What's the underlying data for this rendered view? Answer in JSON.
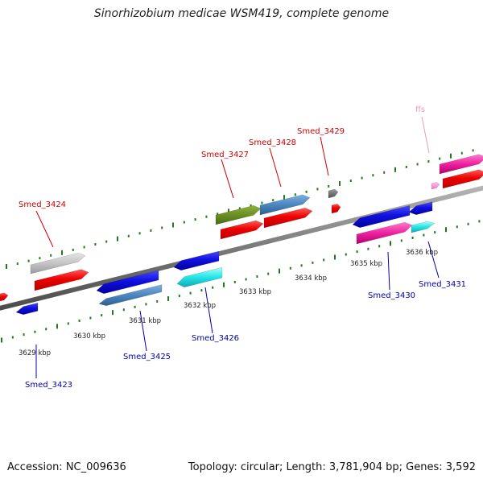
{
  "title": "Sinorhizobium medicae WSM419, complete genome",
  "footer": {
    "accession": "Accession: NC_009636",
    "summary": "Topology: circular; Length: 3,781,904 bp; Genes: 3,592"
  },
  "colors": {
    "top_label": "#cc0000",
    "bottom_label": "#0000aa",
    "rna_label": "#e89cc0",
    "tick": "#1f7a1f",
    "backbone": "#7a7a7a"
  },
  "scale_labels": [
    "3629 kbp",
    "3630 kbp",
    "3631 kbp",
    "3632 kbp",
    "3633 kbp",
    "3634 kbp",
    "3635 kbp",
    "3636 kbp"
  ],
  "genes": [
    {
      "label": "Smed_3423",
      "strand": "bottom"
    },
    {
      "label": "Smed_3424",
      "strand": "top"
    },
    {
      "label": "Smed_3425",
      "strand": "bottom"
    },
    {
      "label": "Smed_3426",
      "strand": "bottom"
    },
    {
      "label": "Smed_3427",
      "strand": "top"
    },
    {
      "label": "Smed_3428",
      "strand": "top"
    },
    {
      "label": "Smed_3429",
      "strand": "top"
    },
    {
      "label": "Smed_3430",
      "strand": "bottom"
    },
    {
      "label": "Smed_3431",
      "strand": "bottom"
    },
    {
      "label": "ffs",
      "strand": "top"
    }
  ]
}
